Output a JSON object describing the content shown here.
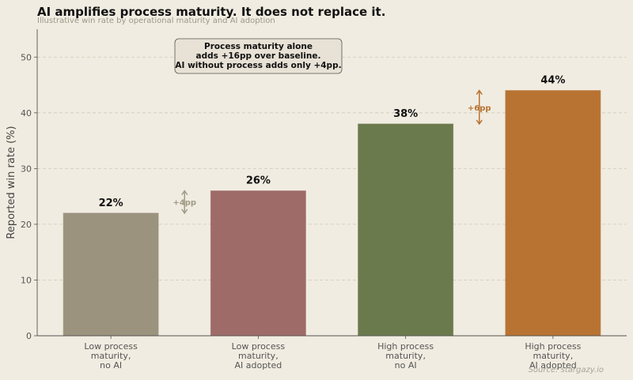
{
  "chart_data": {
    "type": "bar",
    "title": "AI amplifies process maturity. It does not replace it.",
    "subtitle": "Illustrative win rate by operational maturity and AI adoption",
    "xlabel": "",
    "ylabel": "Reported win rate (%)",
    "ylim": [
      0,
      55
    ],
    "yticks": [
      0,
      10,
      20,
      30,
      40,
      50
    ],
    "grid": "horizontal dashed",
    "categories": [
      [
        "Low process",
        "maturity,",
        "no AI"
      ],
      [
        "Low process",
        "maturity,",
        "AI adopted"
      ],
      [
        "High process",
        "maturity,",
        "no AI"
      ],
      [
        "High process",
        "maturity,",
        "AI adopted"
      ]
    ],
    "values": [
      22,
      26,
      38,
      44
    ],
    "data_labels": [
      "22%",
      "26%",
      "38%",
      "44%"
    ],
    "colors": [
      "#9b937e",
      "#9e6b69",
      "#6b7a4d",
      "#b87333"
    ],
    "annotation_box": [
      "Process maturity alone",
      "adds +16pp over baseline.",
      "AI without process adds only +4pp."
    ],
    "deltas": [
      {
        "label": "+4pp",
        "from": 22,
        "to": 26,
        "between": [
          0,
          1
        ],
        "color": "#a09b87"
      },
      {
        "label": "+6pp",
        "from": 38,
        "to": 44,
        "between": [
          2,
          3
        ],
        "color": "#b87333"
      }
    ],
    "source": "Source: stargazy.io"
  }
}
